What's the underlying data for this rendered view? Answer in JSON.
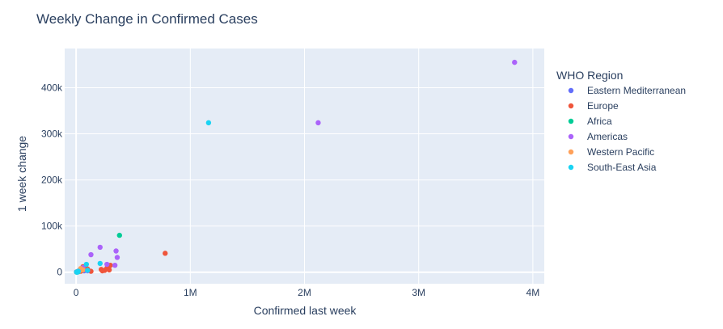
{
  "chart_data": {
    "type": "scatter",
    "title": "Weekly Change in Confirmed Cases",
    "xlabel": "Confirmed last week",
    "ylabel": "1 week change",
    "xlim": [
      -100000,
      4100000
    ],
    "ylim": [
      -25000,
      485000
    ],
    "x_ticks": [
      0,
      1000000,
      2000000,
      3000000,
      4000000
    ],
    "x_tick_labels": [
      "0",
      "1M",
      "2M",
      "3M",
      "4M"
    ],
    "y_ticks": [
      0,
      100000,
      200000,
      300000,
      400000
    ],
    "y_tick_labels": [
      "0",
      "100k",
      "200k",
      "300k",
      "400k"
    ],
    "grid": true,
    "legend_title": "WHO Region",
    "legend_position": "right",
    "series": [
      {
        "name": "Eastern Mediterranean",
        "color": "#636efa",
        "points": [
          [
            15000,
            2000
          ],
          [
            30000,
            4000
          ],
          [
            50000,
            5000
          ],
          [
            8000,
            1000
          ],
          [
            70000,
            3000
          ],
          [
            3000,
            500
          ],
          [
            40000,
            6000
          ],
          [
            20000,
            1500
          ]
        ]
      },
      {
        "name": "Europe",
        "color": "#ef553b",
        "points": [
          [
            780000,
            41000
          ],
          [
            250000,
            4000
          ],
          [
            270000,
            9000
          ],
          [
            220000,
            6000
          ],
          [
            290000,
            5000
          ],
          [
            300000,
            15000
          ],
          [
            60000,
            12000
          ],
          [
            100000,
            7000
          ],
          [
            40000,
            2000
          ],
          [
            80000,
            8000
          ],
          [
            230000,
            3000
          ],
          [
            15000,
            1000
          ],
          [
            5000,
            500
          ],
          [
            130000,
            2000
          ]
        ]
      },
      {
        "name": "Africa",
        "color": "#00cc96",
        "points": [
          [
            380000,
            80000
          ],
          [
            20000,
            1000
          ],
          [
            5000,
            300
          ]
        ]
      },
      {
        "name": "Americas",
        "color": "#ab63fa",
        "points": [
          [
            3840000,
            455000
          ],
          [
            2120000,
            324000
          ],
          [
            210000,
            54000
          ],
          [
            130000,
            38000
          ],
          [
            350000,
            46000
          ],
          [
            360000,
            32000
          ],
          [
            270000,
            17000
          ],
          [
            340000,
            15000
          ],
          [
            100000,
            3000
          ],
          [
            60000,
            10000
          ]
        ]
      },
      {
        "name": "Western Pacific",
        "color": "#ffa15a",
        "points": [
          [
            40000,
            8000
          ],
          [
            20000,
            2000
          ],
          [
            60000,
            5000
          ],
          [
            10000,
            1000
          ],
          [
            30000,
            3000
          ]
        ]
      },
      {
        "name": "South-East Asia",
        "color": "#19d3f3",
        "points": [
          [
            1160000,
            324000
          ],
          [
            210000,
            19000
          ],
          [
            90000,
            17000
          ],
          [
            100000,
            4000
          ],
          [
            20000,
            2000
          ],
          [
            5000,
            500
          ],
          [
            10000,
            0
          ]
        ]
      }
    ]
  }
}
